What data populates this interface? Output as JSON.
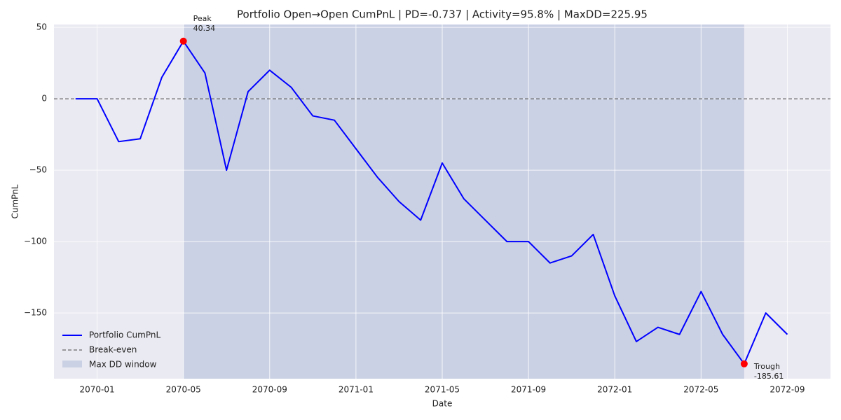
{
  "chart_data": {
    "type": "line",
    "title": "Portfolio Open→Open CumPnL | PD=-0.737 | Activity=95.8% | MaxDD=225.95",
    "x_label": "Date",
    "y_label": "CumPnL",
    "x": [
      "2069-12",
      "2070-01",
      "2070-02",
      "2070-03",
      "2070-04",
      "2070-05",
      "2070-06",
      "2070-07",
      "2070-08",
      "2070-09",
      "2070-10",
      "2070-11",
      "2070-12",
      "2071-01",
      "2071-02",
      "2071-03",
      "2071-04",
      "2071-05",
      "2071-06",
      "2071-07",
      "2071-08",
      "2071-09",
      "2071-10",
      "2071-11",
      "2071-12",
      "2072-01",
      "2072-02",
      "2072-03",
      "2072-04",
      "2072-05",
      "2072-06",
      "2072-07",
      "2072-08",
      "2072-09"
    ],
    "series": [
      {
        "name": "Portfolio CumPnL",
        "color": "#0000ff",
        "values": [
          0,
          0,
          -30,
          -28,
          15,
          40.34,
          18,
          -50,
          5,
          20,
          8,
          -12,
          -15,
          -35,
          -55,
          -72,
          -85,
          -45,
          -70,
          -85,
          -100,
          -100,
          -115,
          -110,
          -95,
          -138,
          -170,
          -160,
          -165,
          -135,
          -165,
          -185.61,
          -150,
          -165
        ]
      }
    ],
    "reference_line": {
      "name": "Break-even",
      "value": 0,
      "color": "#444444"
    },
    "shaded_region": {
      "name": "Max DD window",
      "x": [
        "2070-05",
        "2072-07"
      ],
      "color": "#b0bcd8"
    },
    "annotations": [
      {
        "label": "Peak",
        "x": "2070-05",
        "value": 40.34,
        "color": "#ff0000"
      },
      {
        "label": "Trough",
        "x": "2072-07",
        "value": -185.61,
        "color": "#ff0000"
      }
    ],
    "xlim": [
      "2069-11",
      "2072-11"
    ],
    "xticks": [
      "2070-01",
      "2070-05",
      "2070-09",
      "2071-01",
      "2071-05",
      "2071-09",
      "2072-01",
      "2072-05",
      "2072-09"
    ],
    "ylim": [
      -196,
      52
    ],
    "yticks": [
      50,
      0,
      {
        "value": -50,
        "label": "−50"
      },
      {
        "value": -100,
        "label": "−100"
      },
      {
        "value": -150,
        "label": "−150"
      }
    ],
    "grid": true,
    "legend": "lower left"
  }
}
